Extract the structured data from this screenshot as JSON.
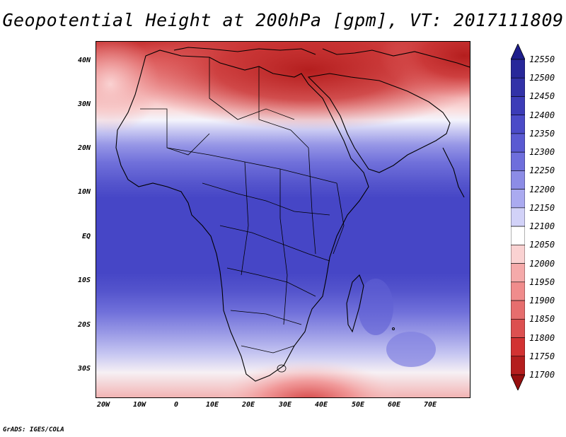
{
  "title": "Geopotential Height at 200hPa [gpm], VT: 2017111809",
  "footer": "GrADS: IGES/COLA",
  "map": {
    "lat_range": [
      -37,
      45
    ],
    "lon_range": [
      -23,
      80
    ],
    "lat_ticks": [
      "40N",
      "30N",
      "20N",
      "10N",
      "EQ",
      "10S",
      "20S",
      "30S"
    ],
    "lon_ticks": [
      "20W",
      "10W",
      "0",
      "10E",
      "20E",
      "30E",
      "40E",
      "50E",
      "60E",
      "70E"
    ],
    "field": "Geopotential Height",
    "level": "200hPa",
    "units": "gpm"
  },
  "colorbar": {
    "levels": [
      "12550",
      "12500",
      "12450",
      "12400",
      "12350",
      "12300",
      "12250",
      "12200",
      "12150",
      "12100",
      "12050",
      "12000",
      "11950",
      "11900",
      "11850",
      "11800",
      "11750",
      "11700"
    ],
    "colors": [
      "#1e1e8c",
      "#28289a",
      "#3232a8",
      "#3c3cb8",
      "#4b4bc8",
      "#5a5ad2",
      "#6e6edc",
      "#8c8ce6",
      "#aaaaf0",
      "#d2d2f8",
      "#ffffff",
      "#fad2d2",
      "#f5aaaa",
      "#f08c8c",
      "#e66e6e",
      "#dc5050",
      "#d23232",
      "#b41e1e",
      "#960f0f"
    ]
  }
}
